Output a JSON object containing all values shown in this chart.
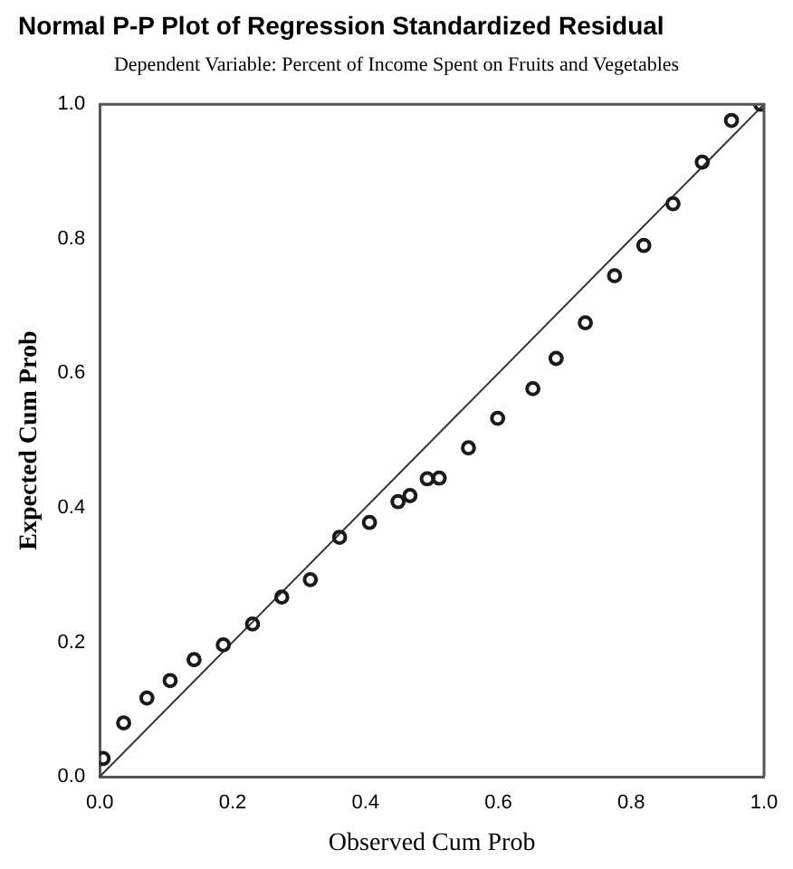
{
  "chart_data": {
    "type": "scatter",
    "title": "Normal P-P Plot of Regression Standardized Residual",
    "subtitle": "Dependent Variable: Percent of Income Spent on Fruits and Vegetables",
    "xlabel": "Observed Cum Prob",
    "ylabel": "Expected Cum Prob",
    "xlim": [
      0,
      1
    ],
    "ylim": [
      0,
      1
    ],
    "xticks": [
      {
        "value": 0,
        "label": "0.0"
      },
      0.2,
      0.4,
      0.6,
      0.8,
      {
        "value": 1,
        "label": "1.0"
      }
    ],
    "yticks": [
      {
        "value": 0,
        "label": "0.0"
      },
      0.2,
      0.4,
      0.6,
      0.8,
      {
        "value": 1,
        "label": "1.0"
      }
    ],
    "grid": false,
    "legend": false,
    "series": [
      {
        "marker": "circle",
        "color": "#1a1a1a",
        "x": [
          0.005,
          0.036,
          0.071,
          0.106,
          0.142,
          0.186,
          0.23,
          0.274,
          0.317,
          0.361,
          0.406,
          0.449,
          0.467,
          0.493,
          0.511,
          0.555,
          0.599,
          0.652,
          0.687,
          0.731,
          0.775,
          0.819,
          0.863,
          0.907,
          0.951,
          0.995
        ],
        "values": [
          0.027,
          0.08,
          0.117,
          0.143,
          0.174,
          0.196,
          0.227,
          0.267,
          0.293,
          0.356,
          0.378,
          0.409,
          0.418,
          0.443,
          0.444,
          0.489,
          0.533,
          0.577,
          0.622,
          0.675,
          0.745,
          0.79,
          0.852,
          0.914,
          0.976,
          1.0
        ]
      },
      {
        "type": "line",
        "marker": "none",
        "color": "#333333",
        "x": [
          0,
          1
        ],
        "values": [
          0,
          1
        ]
      }
    ]
  }
}
